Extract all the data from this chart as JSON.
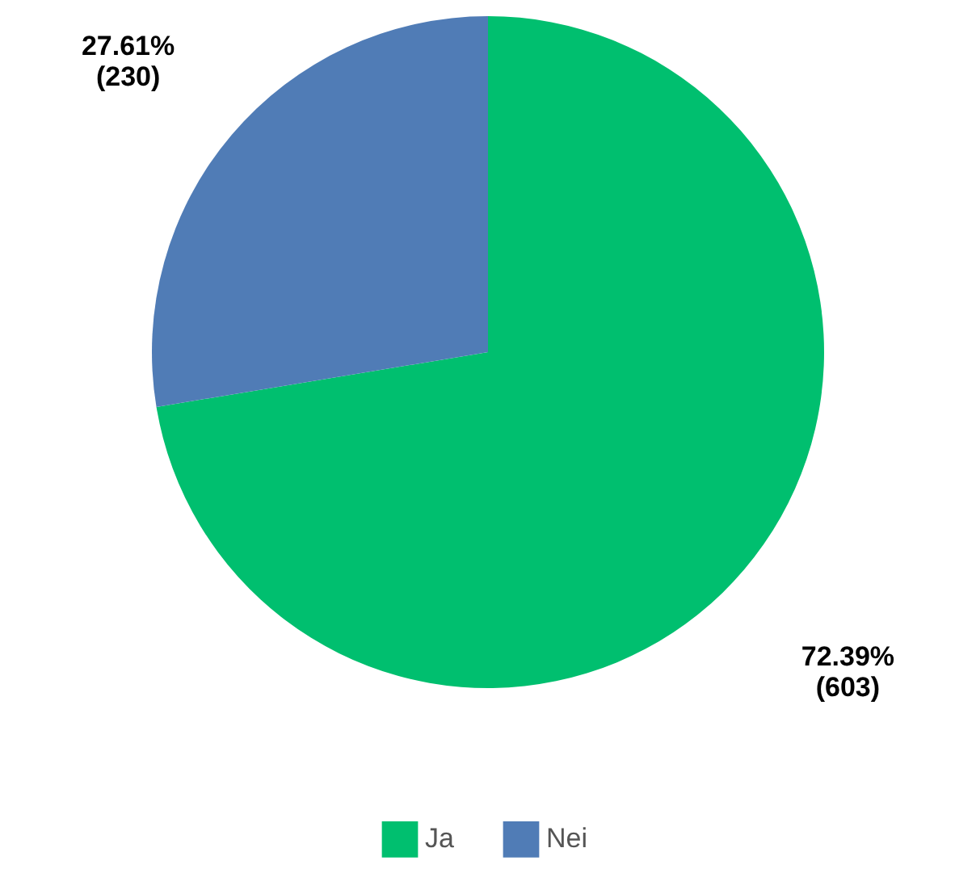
{
  "chart_data": {
    "type": "pie",
    "categories": [
      "Ja",
      "Nei"
    ],
    "values": [
      603,
      230
    ],
    "colors": [
      "#00bf6f",
      "#507cb6"
    ],
    "value_labels": [
      "72.39%\n(603)",
      "27.61%\n(230)"
    ],
    "legend": "bottom"
  }
}
